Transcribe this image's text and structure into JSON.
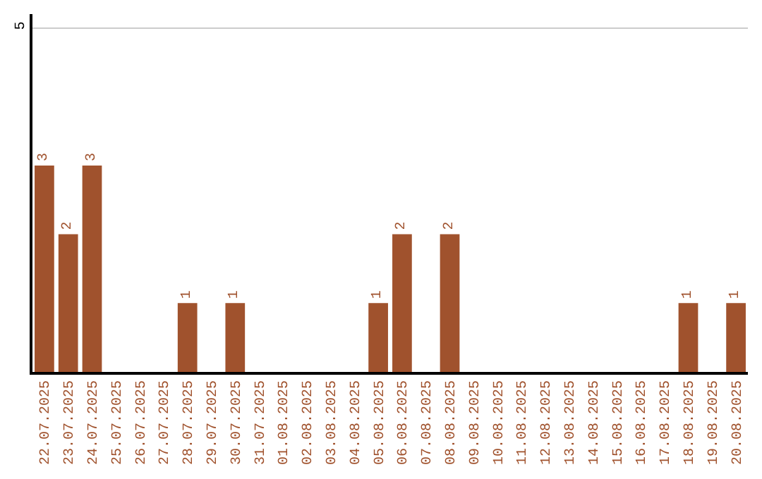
{
  "chart_data": {
    "type": "bar",
    "categories": [
      "22.07.2025",
      "23.07.2025",
      "24.07.2025",
      "25.07.2025",
      "26.07.2025",
      "27.07.2025",
      "28.07.2025",
      "29.07.2025",
      "30.07.2025",
      "31.07.2025",
      "01.08.2025",
      "02.08.2025",
      "03.08.2025",
      "04.08.2025",
      "05.08.2025",
      "06.08.2025",
      "07.08.2025",
      "08.08.2025",
      "09.08.2025",
      "10.08.2025",
      "11.08.2025",
      "12.08.2025",
      "13.08.2025",
      "14.08.2025",
      "15.08.2025",
      "16.08.2025",
      "17.08.2025",
      "18.08.2025",
      "19.08.2025",
      "20.08.2025"
    ],
    "values": [
      3,
      2,
      3,
      0,
      0,
      0,
      1,
      0,
      1,
      0,
      0,
      0,
      0,
      0,
      1,
      2,
      0,
      2,
      0,
      0,
      0,
      0,
      0,
      0,
      0,
      0,
      0,
      1,
      0,
      1
    ],
    "value_labels": [
      "3",
      "2",
      "3",
      null,
      null,
      null,
      "1",
      null,
      "1",
      null,
      null,
      null,
      null,
      null,
      "1",
      "2",
      null,
      "2",
      null,
      null,
      null,
      null,
      null,
      null,
      null,
      null,
      null,
      "1",
      null,
      "1"
    ],
    "color": "#a0522d",
    "ylim": [
      0,
      5.2
    ],
    "yticks": [
      5
    ],
    "grid": "y"
  }
}
